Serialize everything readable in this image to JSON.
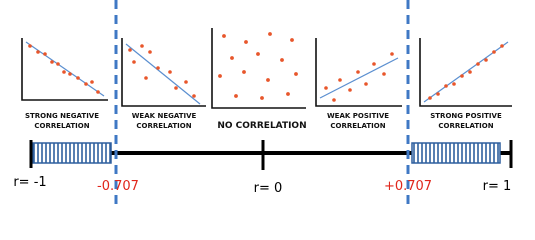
{
  "panels": [
    {
      "label_lines": [
        "STRONG NEGATIVE",
        "CORRELATION"
      ]
    },
    {
      "label_lines": [
        "WEAK NEGATIVE",
        "CORRELATION"
      ]
    },
    {
      "label_lines": [
        "NO CORRELATION"
      ]
    },
    {
      "label_lines": [
        "WEAK POSITIVE",
        "CORRELATION"
      ]
    },
    {
      "label_lines": [
        "STRONG POSITIVE",
        "CORRELATION"
      ]
    }
  ],
  "scale": {
    "labels": [
      "r= -1",
      "-0.707",
      "r= 0",
      "+0.707",
      "r= 1"
    ]
  }
}
